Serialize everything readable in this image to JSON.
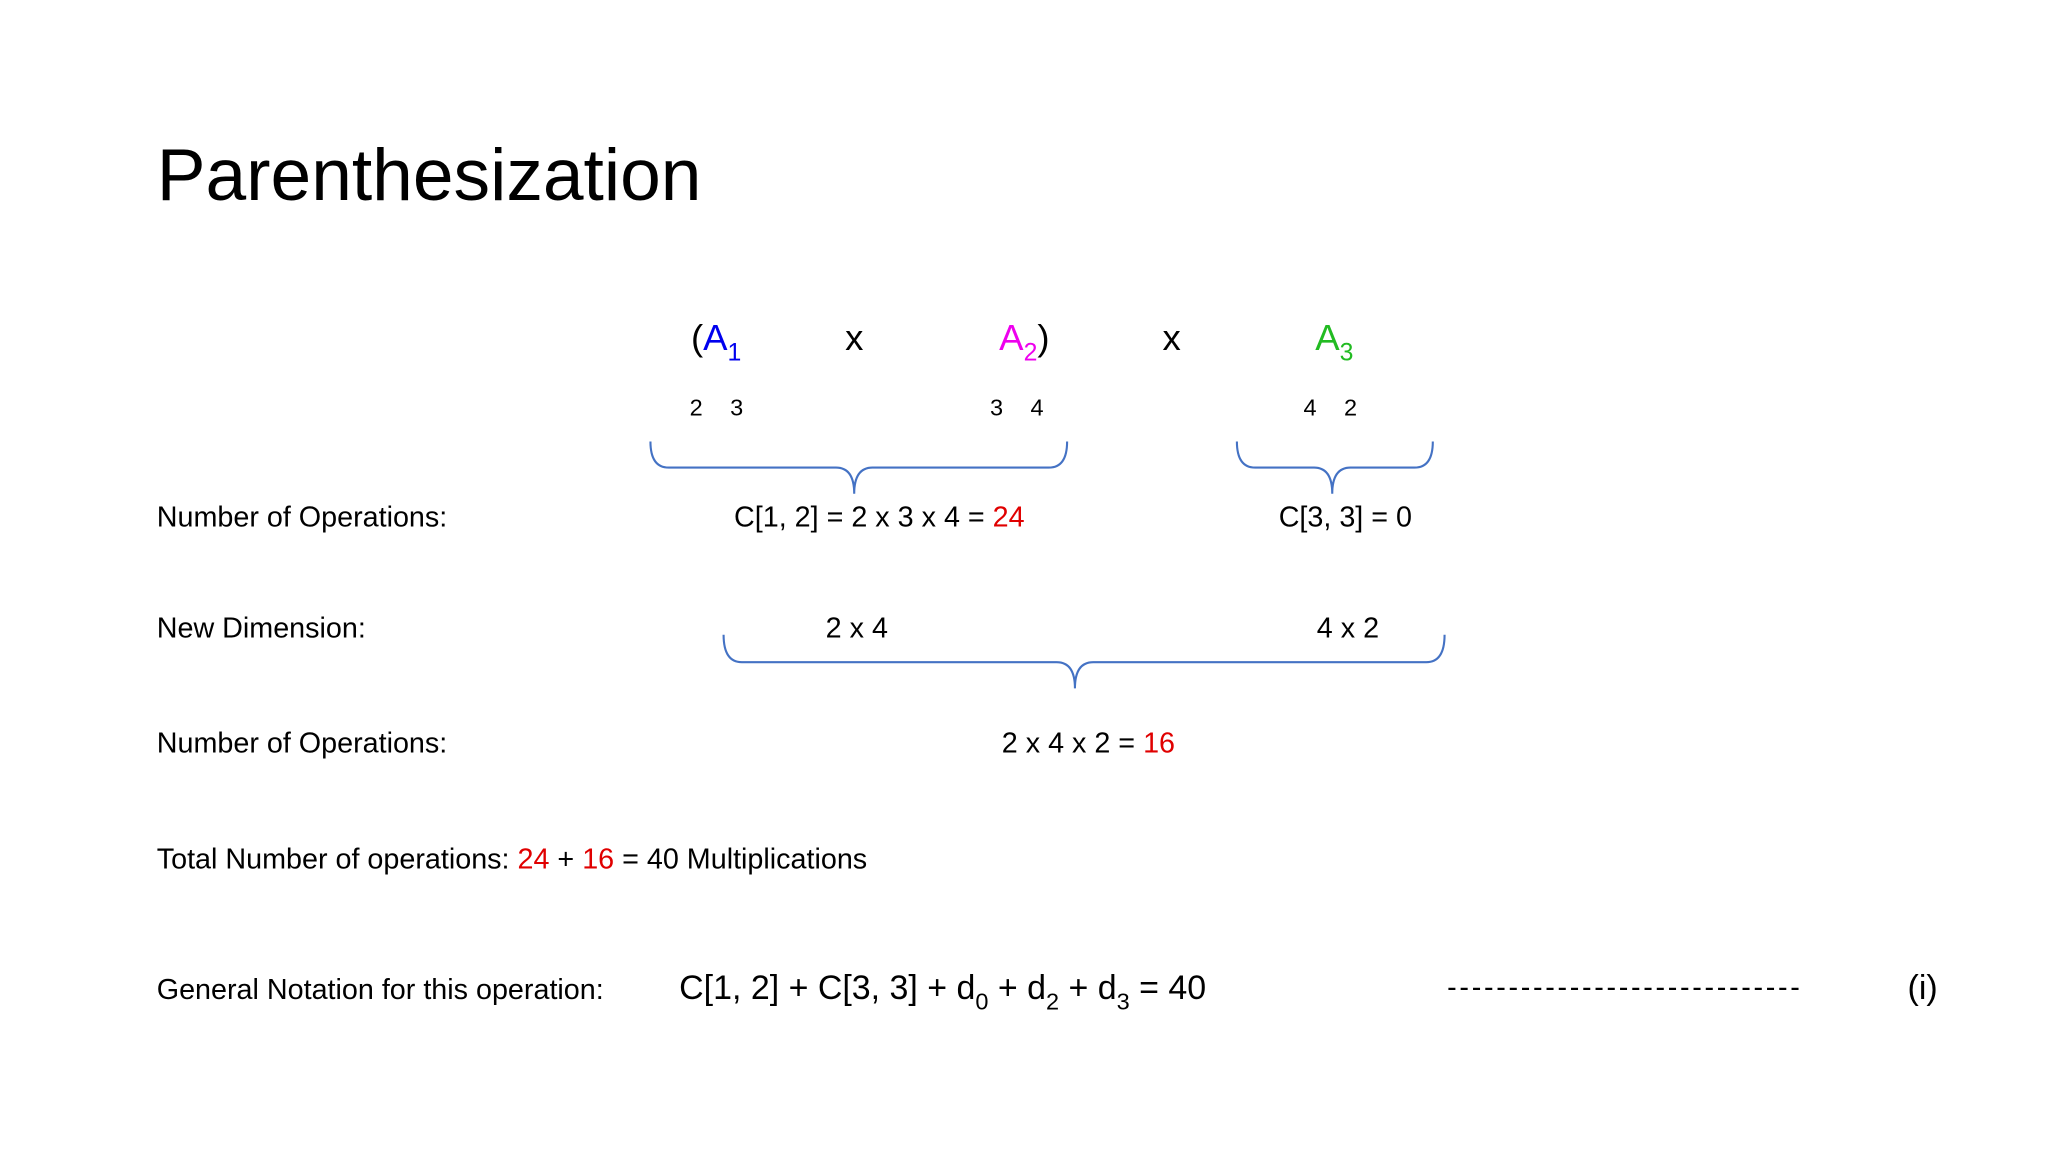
{
  "title": "Parenthesization",
  "product": {
    "open": "(",
    "close": ")",
    "operators": [
      "x",
      "x"
    ],
    "matrices": [
      {
        "name": "A",
        "subscript": "1",
        "dims": [
          "2",
          "3"
        ]
      },
      {
        "name": "A",
        "subscript": "2",
        "dims": [
          "3",
          "4"
        ]
      },
      {
        "name": "A",
        "subscript": "3",
        "dims": [
          "4",
          "2"
        ]
      }
    ]
  },
  "step1": {
    "label": "Number of Operations:",
    "left": {
      "expr": "C[1, 2] = 2 x 3 x 4 = ",
      "result": "24"
    },
    "right": "C[3, 3] = 0"
  },
  "step2": {
    "label": "New Dimension:",
    "left": "2 x 4",
    "right": "4 x 2"
  },
  "step3": {
    "label": "Number of Operations:",
    "expr": "2 x 4 x 2 = ",
    "result": "16"
  },
  "total": {
    "label": "Total Number of operations: ",
    "first": "24",
    "plus": " + ",
    "second": "16",
    "rest": " = 40 Multiplications"
  },
  "notation": {
    "label": "General Notation for this operation:",
    "formula": [
      "C[1, 2] + C[3, 3] + d",
      "0",
      " + d",
      "2",
      " + d",
      "3",
      " = 40"
    ],
    "dashes": "-----------------------------",
    "tag": "(i)"
  }
}
